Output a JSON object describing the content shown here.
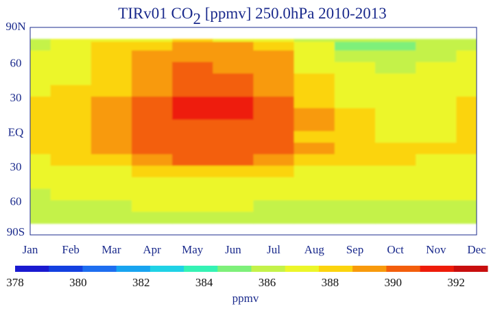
{
  "chart_data": {
    "type": "heatmap",
    "title_main": "TIRv01 CO",
    "title_sub": "2",
    "title_rest": " [ppmv]  250.0hPa 2010-2013",
    "x_ticks": [
      "Jan",
      "Feb",
      "Mar",
      "Apr",
      "May",
      "Jun",
      "Jul",
      "Aug",
      "Sep",
      "Oct",
      "Nov",
      "Dec"
    ],
    "y_ticks": [
      {
        "lat": 90,
        "label": "90N"
      },
      {
        "lat": 60,
        "label": "60"
      },
      {
        "lat": 30,
        "label": "30"
      },
      {
        "lat": 0,
        "label": "EQ"
      },
      {
        "lat": -30,
        "label": "30"
      },
      {
        "lat": -60,
        "label": "60"
      },
      {
        "lat": -90,
        "label": "90S"
      }
    ],
    "xlim": [
      1,
      12
    ],
    "ylim": [
      -90,
      90
    ],
    "data_lat_range": [
      -80,
      80
    ],
    "colorbar": {
      "label": "ppmv",
      "tick_labels": [
        "378",
        "380",
        "382",
        "384",
        "386",
        "388",
        "390",
        "392"
      ],
      "range": [
        378,
        393
      ],
      "colors": [
        "#1a1ad0",
        "#1440e0",
        "#1e6ef0",
        "#18a4f0",
        "#20d2e6",
        "#35f2b4",
        "#7ef07a",
        "#c4f24a",
        "#ecf62a",
        "#fbd40e",
        "#f89a0c",
        "#f35e0c",
        "#ee1c0a",
        "#c80e0e"
      ]
    },
    "lats": [
      80,
      75,
      65,
      55,
      45,
      35,
      25,
      15,
      5,
      -5,
      -15,
      -25,
      -35,
      -45,
      -55,
      -65,
      -75
    ],
    "months": [
      1,
      2,
      3,
      4,
      5,
      6,
      7,
      8,
      9,
      10,
      11,
      12
    ],
    "values": [
      [
        386.5,
        386.8,
        387.2,
        387.6,
        387.8,
        387.6,
        387.2,
        386.5,
        385.8,
        385.5,
        385.8,
        386.2
      ],
      [
        386.3,
        386.9,
        387.8,
        388.6,
        389.2,
        389.3,
        388.6,
        386.8,
        385.2,
        385.0,
        385.6,
        386.2
      ],
      [
        386.6,
        387.2,
        388.0,
        389.2,
        389.6,
        389.6,
        388.8,
        387.2,
        385.9,
        385.8,
        386.3,
        386.6
      ],
      [
        386.9,
        387.4,
        388.2,
        389.4,
        389.8,
        389.6,
        389.0,
        387.6,
        386.6,
        386.4,
        386.7,
        386.9
      ],
      [
        387.2,
        387.6,
        388.4,
        389.6,
        390.2,
        390.1,
        389.2,
        388.0,
        386.9,
        386.9,
        387.0,
        387.2
      ],
      [
        387.6,
        388.0,
        388.6,
        389.7,
        390.5,
        390.4,
        389.5,
        388.3,
        387.3,
        387.2,
        387.2,
        387.5
      ],
      [
        387.9,
        388.5,
        389.2,
        390.3,
        391.2,
        391.0,
        390.0,
        388.6,
        387.6,
        387.4,
        387.4,
        387.7
      ],
      [
        388.1,
        388.7,
        389.3,
        390.5,
        391.1,
        390.9,
        390.1,
        388.8,
        387.7,
        387.5,
        387.5,
        387.9
      ],
      [
        388.0,
        388.6,
        389.2,
        390.1,
        390.6,
        390.5,
        389.9,
        388.8,
        387.9,
        387.6,
        387.6,
        387.9
      ],
      [
        387.8,
        388.3,
        389.0,
        389.8,
        390.2,
        390.2,
        389.8,
        388.7,
        387.9,
        387.6,
        387.6,
        387.8
      ],
      [
        387.8,
        388.4,
        389.1,
        390.0,
        390.4,
        390.6,
        389.9,
        388.8,
        388.0,
        387.8,
        387.8,
        387.9
      ],
      [
        387.5,
        388.0,
        388.7,
        389.7,
        390.3,
        390.4,
        389.5,
        388.4,
        387.7,
        388.4,
        387.6,
        387.6
      ],
      [
        387.0,
        387.4,
        387.6,
        388.3,
        388.6,
        388.7,
        388.2,
        387.5,
        387.1,
        387.1,
        387.1,
        387.1
      ],
      [
        386.7,
        386.9,
        387.0,
        387.0,
        387.1,
        387.1,
        387.0,
        386.8,
        386.8,
        386.8,
        386.8,
        386.8
      ],
      [
        386.4,
        386.6,
        386.7,
        386.8,
        386.9,
        386.8,
        386.8,
        386.6,
        386.6,
        386.6,
        386.6,
        386.6
      ],
      [
        386.2,
        386.4,
        386.5,
        386.6,
        386.6,
        386.6,
        386.5,
        386.5,
        386.5,
        386.5,
        386.4,
        386.2
      ],
      [
        386.1,
        386.2,
        386.3,
        386.4,
        386.5,
        386.4,
        386.3,
        386.3,
        386.3,
        386.3,
        386.2,
        385.9
      ]
    ]
  }
}
